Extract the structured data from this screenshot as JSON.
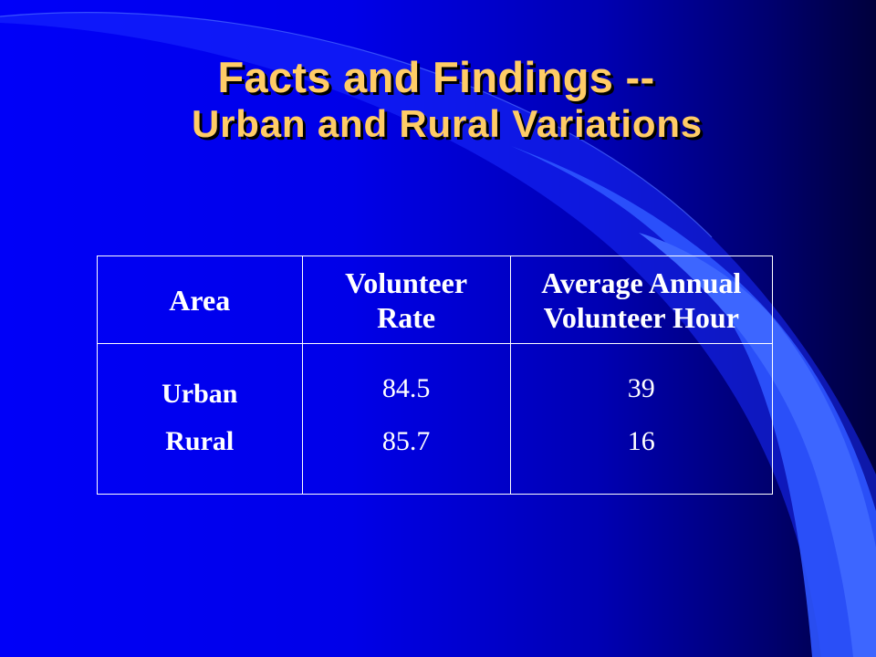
{
  "slide": {
    "title_line1": "Facts and Findings --",
    "title_line2": "Urban and Rural Variations"
  },
  "table": {
    "headers": {
      "area": "Area",
      "rate_line1": "Volunteer",
      "rate_line2": "Rate",
      "hours_line1": "Average Annual",
      "hours_line2": "Volunteer Hour"
    },
    "rows": [
      {
        "area": "Urban",
        "rate": "84.5",
        "hours": "39"
      },
      {
        "area": "Rural",
        "rate": "85.7",
        "hours": "16"
      }
    ]
  },
  "colors": {
    "title": "#ffcc66",
    "background": "#0000f0",
    "accent_swoosh": "#3366ff",
    "text": "#ffffff"
  }
}
